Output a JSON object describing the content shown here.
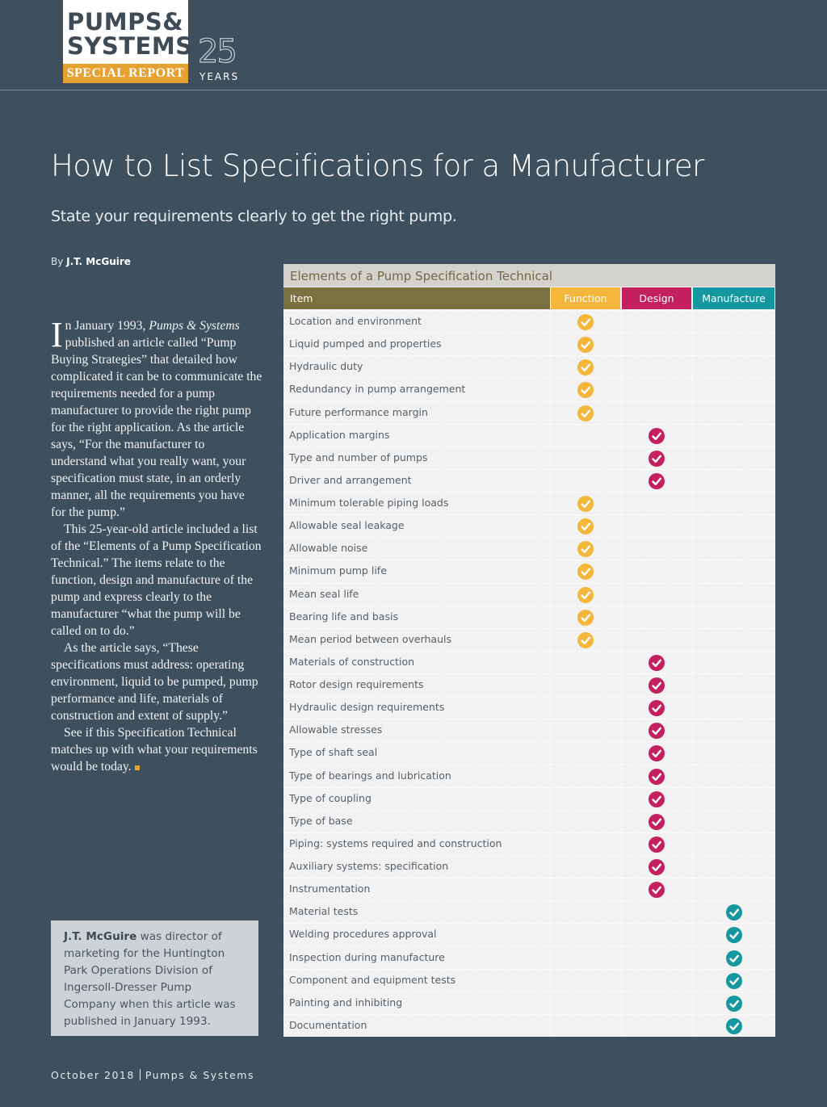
{
  "header": {
    "logo_line1": "PUMPS&",
    "logo_line2": "SYSTEMS",
    "special": "SPECIAL REPORT",
    "anniversary": "25",
    "anniversary_word": "YEARS"
  },
  "article": {
    "title": "How to List Specifications for a Manufacturer",
    "subtitle": "State your requirements clearly to get the right pump.",
    "byline_prefix": "By",
    "author": "J.T. McGuire",
    "drop_cap": "I",
    "paragraphs": [
      {
        "runs": [
          {
            "text": "n January 1993, "
          },
          {
            "text": "Pumps & Systems",
            "style": "italic"
          },
          {
            "text": " published an article called “Pump Buying Strategies” that detailed how complicated it can be to communicate the requirements needed for a pump manufacturer to provide the right pump for the right application. As the article says, “For the manufacturer to understand what you really want, your specification must state, in an orderly manner, all the requirements you have for the pump.”"
          }
        ]
      },
      {
        "runs": [
          {
            "text": "This 25-year-old article included a list of the “Elements of a Pump Specification Technical.” The items relate to the function, design and manufacture of the pump and express clearly to the manufacturer “what the pump will be called on to do.”"
          }
        ]
      },
      {
        "runs": [
          {
            "text": "As the article says, “These specifications must address: operating environment, liquid to be pumped, pump performance and life, materials of construction and extent of supply.”"
          }
        ]
      },
      {
        "runs": [
          {
            "text": "See if this Specification Technical matches up with what your requirements would be today."
          }
        ]
      }
    ],
    "bio_name": "J.T. McGuire",
    "bio_text": " was director of marketing for the Huntington Park Operations Division of Ingersoll-Dresser Pump Company when this article was published in January 1993."
  },
  "table": {
    "caption": "Elements of a Pump Specification Technical",
    "item_header": "Item",
    "item_header_color": "#7b7040",
    "columns": [
      {
        "label": "Function",
        "color": "#f4b73c"
      },
      {
        "label": "Design",
        "color": "#c41f5f"
      },
      {
        "label": "Manufacture",
        "color": "#14979f"
      }
    ],
    "rows": [
      {
        "item": "Location and environment",
        "marks": [
          true,
          false,
          false
        ]
      },
      {
        "item": "Liquid pumped and properties",
        "marks": [
          true,
          false,
          false
        ]
      },
      {
        "item": "Hydraulic duty",
        "marks": [
          true,
          false,
          false
        ]
      },
      {
        "item": "Redundancy in pump arrangement",
        "marks": [
          true,
          false,
          false
        ]
      },
      {
        "item": "Future performance margin",
        "marks": [
          true,
          false,
          false
        ]
      },
      {
        "item": "Application margins",
        "marks": [
          false,
          true,
          false
        ]
      },
      {
        "item": "Type and number of pumps",
        "marks": [
          false,
          true,
          false
        ]
      },
      {
        "item": "Driver and arrangement",
        "marks": [
          false,
          true,
          false
        ]
      },
      {
        "item": "Minimum tolerable piping loads",
        "marks": [
          true,
          false,
          false
        ]
      },
      {
        "item": "Allowable seal leakage",
        "marks": [
          true,
          false,
          false
        ]
      },
      {
        "item": "Allowable noise",
        "marks": [
          true,
          false,
          false
        ]
      },
      {
        "item": "Minimum pump life",
        "marks": [
          true,
          false,
          false
        ]
      },
      {
        "item": "Mean seal life",
        "marks": [
          true,
          false,
          false
        ]
      },
      {
        "item": "Bearing life and basis",
        "marks": [
          true,
          false,
          false
        ]
      },
      {
        "item": "Mean period between overhauls",
        "marks": [
          true,
          false,
          false
        ]
      },
      {
        "item": "Materials of construction",
        "marks": [
          false,
          true,
          false
        ]
      },
      {
        "item": "Rotor design requirements",
        "marks": [
          false,
          true,
          false
        ]
      },
      {
        "item": "Hydraulic design requirements",
        "marks": [
          false,
          true,
          false
        ]
      },
      {
        "item": "Allowable stresses",
        "marks": [
          false,
          true,
          false
        ]
      },
      {
        "item": "Type of shaft seal",
        "marks": [
          false,
          true,
          false
        ]
      },
      {
        "item": "Type of bearings and lubrication",
        "marks": [
          false,
          true,
          false
        ]
      },
      {
        "item": "Type of coupling",
        "marks": [
          false,
          true,
          false
        ]
      },
      {
        "item": "Type of base",
        "marks": [
          false,
          true,
          false
        ]
      },
      {
        "item": "Piping: systems required and construction",
        "marks": [
          false,
          true,
          false
        ]
      },
      {
        "item": "Auxiliary systems: specification",
        "marks": [
          false,
          true,
          false
        ]
      },
      {
        "item": "Instrumentation",
        "marks": [
          false,
          true,
          false
        ]
      },
      {
        "item": "Material tests",
        "marks": [
          false,
          false,
          true
        ]
      },
      {
        "item": "Welding procedures approval",
        "marks": [
          false,
          false,
          true
        ]
      },
      {
        "item": "Inspection during manufacture",
        "marks": [
          false,
          false,
          true
        ]
      },
      {
        "item": "Component and equipment tests",
        "marks": [
          false,
          false,
          true
        ]
      },
      {
        "item": "Painting and inhibiting",
        "marks": [
          false,
          false,
          true
        ]
      },
      {
        "item": "Documentation",
        "marks": [
          false,
          false,
          true
        ]
      }
    ]
  },
  "footer": {
    "date": "October 2018",
    "publication": "Pumps & Systems"
  }
}
